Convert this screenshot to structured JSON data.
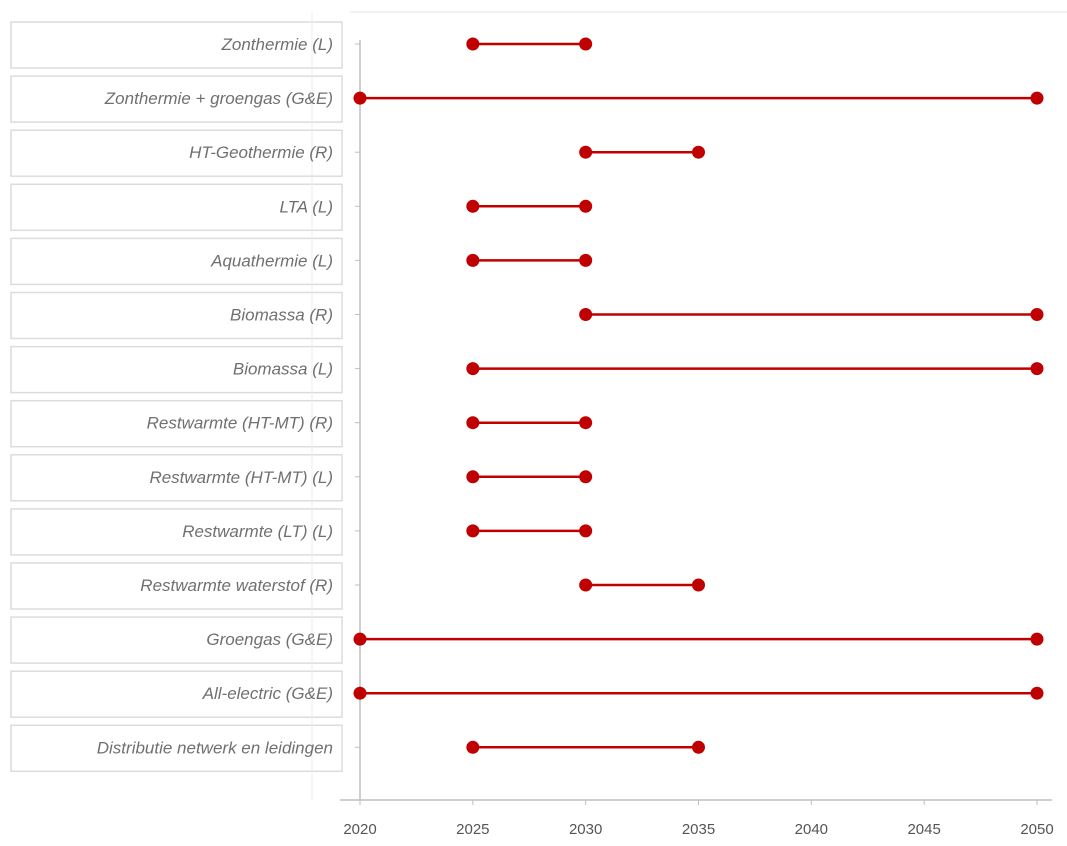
{
  "chart_data": {
    "type": "dumbbell",
    "xlim": [
      2020,
      2050
    ],
    "x_ticks": [
      "2020",
      "2025",
      "2030",
      "2035",
      "2040",
      "2045",
      "2050"
    ],
    "grid": false,
    "color": "#c00000",
    "rows": [
      {
        "label": "Zonthermie (L)",
        "start": 2025,
        "end": 2030
      },
      {
        "label": "Zonthermie + groengas (G&E)",
        "start": 2020,
        "end": 2050
      },
      {
        "label": "HT-Geothermie (R)",
        "start": 2030,
        "end": 2035
      },
      {
        "label": "LTA (L)",
        "start": 2025,
        "end": 2030
      },
      {
        "label": "Aquathermie (L)",
        "start": 2025,
        "end": 2030
      },
      {
        "label": "Biomassa (R)",
        "start": 2030,
        "end": 2050
      },
      {
        "label": "Biomassa (L)",
        "start": 2025,
        "end": 2050
      },
      {
        "label": "Restwarmte (HT-MT) (R)",
        "start": 2025,
        "end": 2030
      },
      {
        "label": "Restwarmte (HT-MT) (L)",
        "start": 2025,
        "end": 2030
      },
      {
        "label": "Restwarmte (LT) (L)",
        "start": 2025,
        "end": 2030
      },
      {
        "label": "Restwarmte waterstof (R)",
        "start": 2030,
        "end": 2035
      },
      {
        "label": "Groengas (G&E)",
        "start": 2020,
        "end": 2050
      },
      {
        "label": "All-electric (G&E)",
        "start": 2020,
        "end": 2050
      },
      {
        "label": "Distributie netwerk en leidingen",
        "start": 2025,
        "end": 2035
      }
    ]
  }
}
